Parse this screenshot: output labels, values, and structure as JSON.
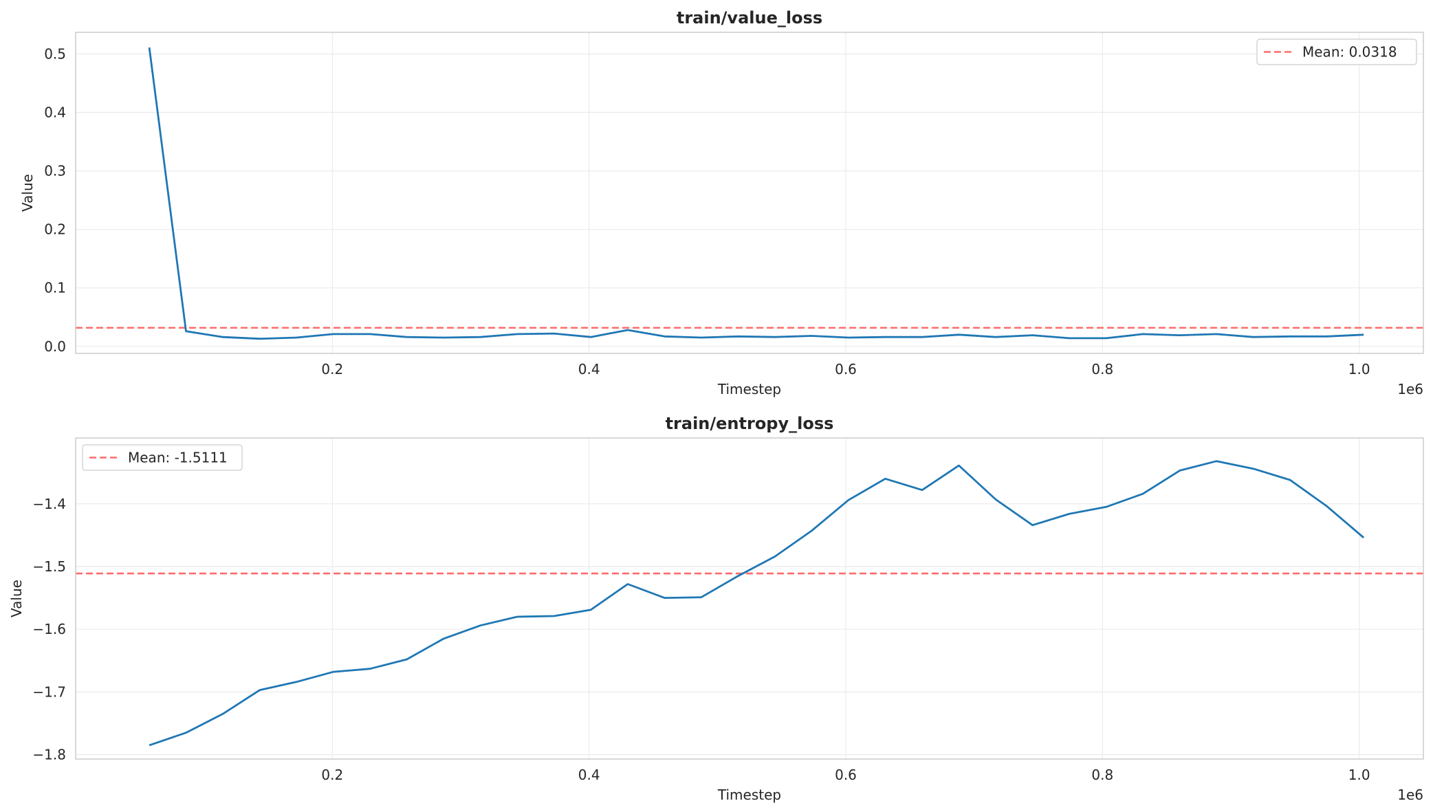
{
  "chart_data": [
    {
      "type": "line",
      "title": "train/value_loss",
      "xlabel": "Timestep",
      "ylabel": "Value",
      "x_offset_label": "1e6",
      "xlim": [
        0.0,
        1.05
      ],
      "ylim": [
        -0.012,
        0.537
      ],
      "xticks": [
        0.2,
        0.4,
        0.6,
        0.8,
        1.0
      ],
      "xtick_labels": [
        "0.2",
        "0.4",
        "0.6",
        "0.8",
        "1.0"
      ],
      "yticks": [
        0.0,
        0.1,
        0.2,
        0.3,
        0.4,
        0.5
      ],
      "ytick_labels": [
        "0.0",
        "0.1",
        "0.2",
        "0.3",
        "0.4",
        "0.5"
      ],
      "grid": true,
      "legend_position": "top-right",
      "mean_line": {
        "value": 0.0318,
        "label": "Mean: 0.0318",
        "color": "#ff6b6b",
        "style": "dashed"
      },
      "series": [
        {
          "color": "#1f77b4",
          "x": [
            0.0574,
            0.086,
            0.1147,
            0.1434,
            0.172,
            0.2007,
            0.2294,
            0.258,
            0.2867,
            0.3154,
            0.3441,
            0.3727,
            0.4014,
            0.4301,
            0.4588,
            0.4874,
            0.5161,
            0.5448,
            0.5734,
            0.6021,
            0.6308,
            0.6595,
            0.6881,
            0.7168,
            0.7455,
            0.7741,
            0.8028,
            0.8315,
            0.8602,
            0.8888,
            0.9175,
            0.9462,
            0.9749,
            1.0035
          ],
          "y": [
            0.511,
            0.026,
            0.016,
            0.013,
            0.015,
            0.021,
            0.021,
            0.016,
            0.015,
            0.016,
            0.021,
            0.022,
            0.016,
            0.028,
            0.017,
            0.015,
            0.017,
            0.016,
            0.018,
            0.015,
            0.016,
            0.016,
            0.02,
            0.016,
            0.019,
            0.014,
            0.014,
            0.021,
            0.019,
            0.021,
            0.016,
            0.017,
            0.017,
            0.02
          ]
        }
      ]
    },
    {
      "type": "line",
      "title": "train/entropy_loss",
      "xlabel": "Timestep",
      "ylabel": "Value",
      "x_offset_label": "1e6",
      "xlim": [
        0.0,
        1.05
      ],
      "ylim": [
        -1.807,
        -1.295
      ],
      "xticks": [
        0.2,
        0.4,
        0.6,
        0.8,
        1.0
      ],
      "xtick_labels": [
        "0.2",
        "0.4",
        "0.6",
        "0.8",
        "1.0"
      ],
      "yticks": [
        -1.4,
        -1.5,
        -1.6,
        -1.7,
        -1.8
      ],
      "ytick_labels": [
        "−1.4",
        "−1.5",
        "−1.6",
        "−1.7",
        "−1.8"
      ],
      "grid": true,
      "legend_position": "top-left",
      "mean_line": {
        "value": -1.5111,
        "label": "Mean: -1.5111",
        "color": "#ff6b6b",
        "style": "dashed"
      },
      "series": [
        {
          "color": "#1f77b4",
          "x": [
            0.0574,
            0.086,
            0.1147,
            0.1434,
            0.172,
            0.2007,
            0.2294,
            0.258,
            0.2867,
            0.3154,
            0.3441,
            0.3727,
            0.4014,
            0.4301,
            0.4588,
            0.4874,
            0.5161,
            0.5448,
            0.5734,
            0.6021,
            0.6308,
            0.6595,
            0.6881,
            0.7168,
            0.7455,
            0.7741,
            0.8028,
            0.8315,
            0.8602,
            0.8888,
            0.9175,
            0.9462,
            0.9749,
            1.0035
          ],
          "y": [
            -1.785,
            -1.765,
            -1.735,
            -1.697,
            -1.684,
            -1.668,
            -1.663,
            -1.648,
            -1.615,
            -1.594,
            -1.58,
            -1.579,
            -1.569,
            -1.528,
            -1.55,
            -1.549,
            -1.515,
            -1.484,
            -1.443,
            -1.394,
            -1.36,
            -1.378,
            -1.339,
            -1.393,
            -1.434,
            -1.416,
            -1.405,
            -1.384,
            -1.347,
            -1.332,
            -1.344,
            -1.362,
            -1.404,
            -1.454
          ]
        }
      ]
    }
  ]
}
